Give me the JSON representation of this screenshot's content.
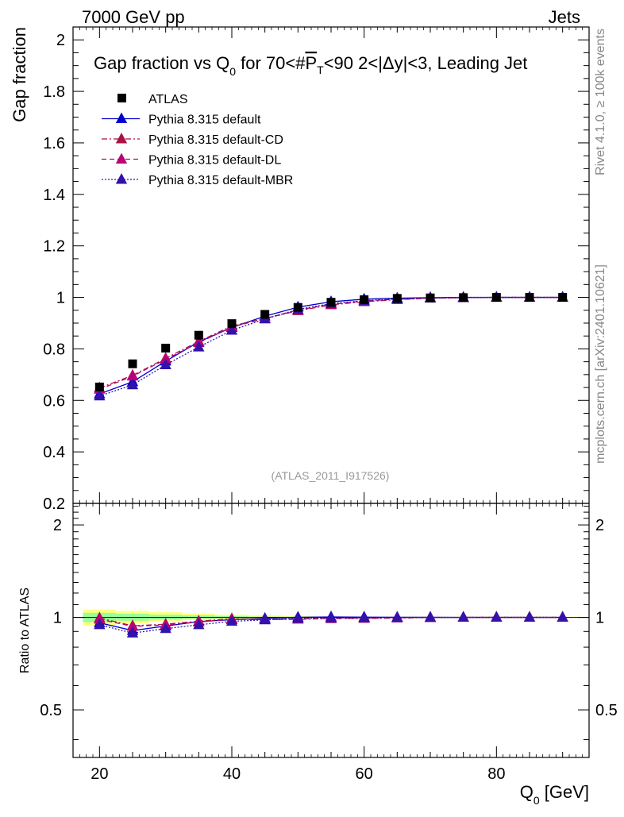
{
  "header": {
    "energy_label": "7000 GeV pp",
    "process_label": "Jets",
    "side_label_top": "Rivet 4.1.0, ≥ 100k events",
    "side_label_bottom": "mcplots.cern.ch [arXiv:2401.10621]",
    "watermark": "(ATLAS_2011_I917526)"
  },
  "colors": {
    "data": "#000000",
    "default": "#0000cc",
    "default_cd": "#aa1144",
    "default_dl": "#bb0077",
    "default_mbr": "#3311aa",
    "band_outer": "#ffff80",
    "band_inner": "#99ff99"
  },
  "chart_data": [
    {
      "type": "line",
      "title": "Gap fraction vs Q",
      "title_sub": "0",
      "title_rest": " for 70<#",
      "title_p": "P",
      "title_t": "T",
      "title_end": "<90  2<|Δy|<3, Leading Jet",
      "xlabel": "",
      "ylabel": "Gap fraction",
      "xlim": [
        16,
        94
      ],
      "ylim": [
        0.2,
        2.05
      ],
      "yticks": [
        0.2,
        0.4,
        0.6,
        0.8,
        1,
        1.2,
        1.4,
        1.6,
        1.8,
        2
      ],
      "ytick_labels": [
        "0.2",
        "0.4",
        "0.6",
        "0.8",
        "1",
        "1.2",
        "1.4",
        "1.6",
        "1.8",
        "2"
      ],
      "x": [
        20,
        25,
        30,
        35,
        40,
        45,
        50,
        55,
        60,
        65,
        70,
        75,
        80,
        85,
        90
      ],
      "legend": [
        {
          "key": "data",
          "label": "ATLAS"
        },
        {
          "key": "default",
          "label": "Pythia 8.315 default"
        },
        {
          "key": "default_cd",
          "label": "Pythia 8.315 default-CD"
        },
        {
          "key": "default_dl",
          "label": "Pythia 8.315 default-DL"
        },
        {
          "key": "default_mbr",
          "label": "Pythia 8.315 default-MBR"
        }
      ],
      "series": [
        {
          "key": "data",
          "name": "ATLAS",
          "values": [
            0.652,
            0.742,
            0.803,
            0.853,
            0.898,
            0.934,
            0.961,
            0.981,
            0.991,
            0.996,
            0.998,
            0.999,
            1.0,
            1.0,
            1.0
          ]
        },
        {
          "key": "default",
          "name": "Pythia 8.315 default",
          "values": [
            0.625,
            0.672,
            0.752,
            0.827,
            0.883,
            0.927,
            0.962,
            0.983,
            0.993,
            0.997,
            0.999,
            1.0,
            1.0,
            1.0,
            1.0
          ]
        },
        {
          "key": "default_cd",
          "name": "Pythia 8.315 default-CD",
          "values": [
            0.648,
            0.697,
            0.763,
            0.829,
            0.889,
            0.918,
            0.948,
            0.971,
            0.983,
            0.991,
            0.997,
            0.999,
            1.0,
            1.0,
            1.0
          ]
        },
        {
          "key": "default_dl",
          "name": "Pythia 8.315 default-DL",
          "values": [
            0.643,
            0.694,
            0.759,
            0.824,
            0.885,
            0.918,
            0.951,
            0.973,
            0.986,
            0.993,
            0.997,
            0.999,
            1.0,
            1.0,
            1.0
          ]
        },
        {
          "key": "default_mbr",
          "name": "Pythia 8.315 default-MBR",
          "values": [
            0.617,
            0.66,
            0.738,
            0.807,
            0.872,
            0.916,
            0.953,
            0.976,
            0.987,
            0.994,
            0.997,
            0.999,
            1.0,
            1.0,
            1.0
          ]
        }
      ]
    },
    {
      "type": "line",
      "title": "",
      "xlabel": "Q",
      "xlabel_sub": "0",
      "xlabel_unit": " [GeV]",
      "ylabel": "Ratio to ATLAS",
      "xlim": [
        16,
        94
      ],
      "ylim": [
        0.35,
        2.35
      ],
      "ylog": true,
      "xticks": [
        20,
        40,
        60,
        80
      ],
      "xtick_labels": [
        "20",
        "40",
        "60",
        "80"
      ],
      "yticks": [
        0.5,
        1,
        2
      ],
      "ytick_labels": [
        "0.5",
        "1",
        "2"
      ],
      "x": [
        20,
        25,
        30,
        35,
        40,
        45,
        50,
        55,
        60,
        65,
        70,
        75,
        80,
        85,
        90
      ],
      "band_outer": [
        [
          17.5,
          22.5,
          0.94,
          1.06
        ],
        [
          22.5,
          27.5,
          0.955,
          1.05
        ],
        [
          27.5,
          32.5,
          0.97,
          1.04
        ],
        [
          32.5,
          37.5,
          0.98,
          1.03
        ],
        [
          37.5,
          42.5,
          0.985,
          1.02
        ],
        [
          42.5,
          47.5,
          0.99,
          1.015
        ],
        [
          47.5,
          52.5,
          0.995,
          1.01
        ],
        [
          52.5,
          92.5,
          0.997,
          1.005
        ]
      ],
      "band_inner": [
        [
          17.5,
          22.5,
          0.965,
          1.035
        ],
        [
          22.5,
          27.5,
          0.975,
          1.028
        ],
        [
          27.5,
          32.5,
          0.985,
          1.02
        ],
        [
          32.5,
          37.5,
          0.99,
          1.015
        ],
        [
          37.5,
          42.5,
          0.993,
          1.01
        ],
        [
          42.5,
          52.5,
          0.996,
          1.006
        ],
        [
          52.5,
          92.5,
          0.998,
          1.003
        ]
      ],
      "series": [
        {
          "key": "default",
          "name": "Pythia 8.315 default",
          "values": [
            0.96,
            0.906,
            0.937,
            0.969,
            0.983,
            0.992,
            1.001,
            1.003,
            1.002,
            1.001,
            1.001,
            1.0,
            1.0,
            1.0,
            1.0
          ]
        },
        {
          "key": "default_cd",
          "name": "Pythia 8.315 default-CD",
          "values": [
            0.995,
            0.939,
            0.95,
            0.972,
            0.99,
            0.983,
            0.986,
            0.99,
            0.992,
            0.995,
            0.999,
            1.0,
            1.0,
            1.0,
            1.0
          ]
        },
        {
          "key": "default_dl",
          "name": "Pythia 8.315 default-DL",
          "values": [
            0.986,
            0.935,
            0.945,
            0.966,
            0.986,
            0.983,
            0.99,
            0.992,
            0.995,
            0.997,
            0.999,
            1.0,
            1.0,
            1.0,
            1.0
          ]
        },
        {
          "key": "default_mbr",
          "name": "Pythia 8.315 default-MBR",
          "values": [
            0.946,
            0.889,
            0.919,
            0.946,
            0.971,
            0.981,
            0.992,
            0.995,
            0.996,
            0.998,
            0.999,
            1.0,
            1.0,
            1.0,
            1.0
          ]
        }
      ]
    }
  ]
}
